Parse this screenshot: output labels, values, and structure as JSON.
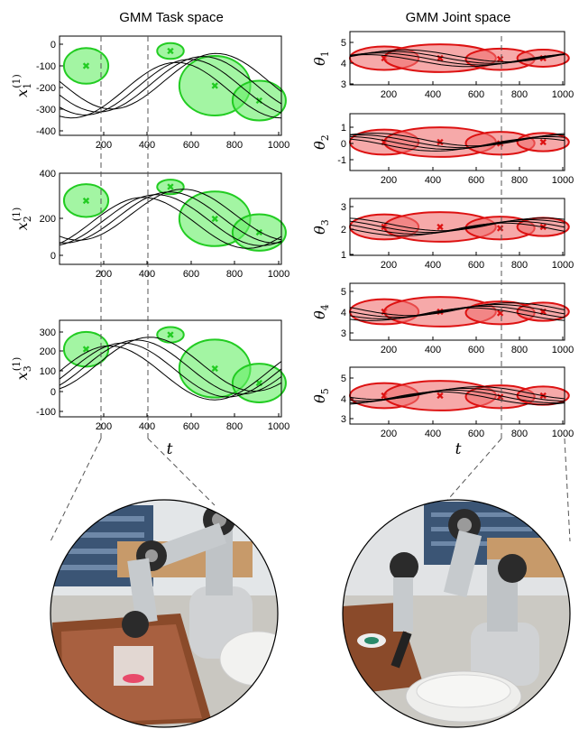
{
  "titles": {
    "left": "GMM Task space",
    "right": "GMM Joint space"
  },
  "xlabel": "t",
  "colors": {
    "task": "#22cc22",
    "task_fill": "#66ee66",
    "joint": "#dd1111",
    "joint_fill": "#f07070",
    "traj": "#000000"
  },
  "panels": [
    {
      "id": "x1",
      "label": "x",
      "sub": "1",
      "sup": "(1)",
      "ylim": [
        -450,
        60
      ],
      "yticks": [
        "0",
        "-100",
        "-200",
        "-300",
        "-400"
      ],
      "xticks": [
        "200",
        "400",
        "600",
        "800",
        "1000"
      ]
    },
    {
      "id": "x2",
      "label": "x",
      "sub": "2",
      "sup": "(1)",
      "ylim": [
        -60,
        400
      ],
      "yticks": [
        "400",
        "200",
        "0"
      ],
      "xticks": [
        "200",
        "400",
        "600",
        "800",
        "1000"
      ]
    },
    {
      "id": "x3",
      "label": "x",
      "sub": "3",
      "sup": "(1)",
      "ylim": [
        -150,
        350
      ],
      "yticks": [
        "300",
        "200",
        "100",
        "0",
        "-100"
      ],
      "xticks": [
        "200",
        "400",
        "600",
        "800",
        "1000"
      ]
    },
    {
      "id": "th1",
      "label": "θ",
      "sub": "1",
      "ylim": [
        2.6,
        5.6
      ],
      "yticks": [
        "5",
        "4",
        "3"
      ],
      "xticks": [
        "200",
        "400",
        "600",
        "800",
        "1000"
      ]
    },
    {
      "id": "th2",
      "label": "θ",
      "sub": "2",
      "ylim": [
        -1.4,
        1.5
      ],
      "yticks": [
        "1",
        "0",
        "-1"
      ],
      "xticks": [
        "200",
        "400",
        "600",
        "800",
        "1000"
      ]
    },
    {
      "id": "th3",
      "label": "θ",
      "sub": "3",
      "ylim": [
        0.8,
        3.5
      ],
      "yticks": [
        "3",
        "2",
        "1"
      ],
      "xticks": [
        "200",
        "400",
        "600",
        "800",
        "1000"
      ]
    },
    {
      "id": "th4",
      "label": "θ",
      "sub": "4",
      "ylim": [
        2.6,
        5.6
      ],
      "yticks": [
        "5",
        "4",
        "3"
      ],
      "xticks": [
        "200",
        "400",
        "600",
        "800",
        "1000"
      ]
    },
    {
      "id": "th5",
      "label": "θ",
      "sub": "5",
      "ylim": [
        2.6,
        6.0
      ],
      "yticks": [
        "5",
        "4",
        "3"
      ],
      "xticks": [
        "200",
        "400",
        "600",
        "800",
        "1000"
      ]
    }
  ],
  "photos": {
    "left": "robot-arm-grasping-cup",
    "right": "robot-arm-pouring-into-bowl"
  }
}
